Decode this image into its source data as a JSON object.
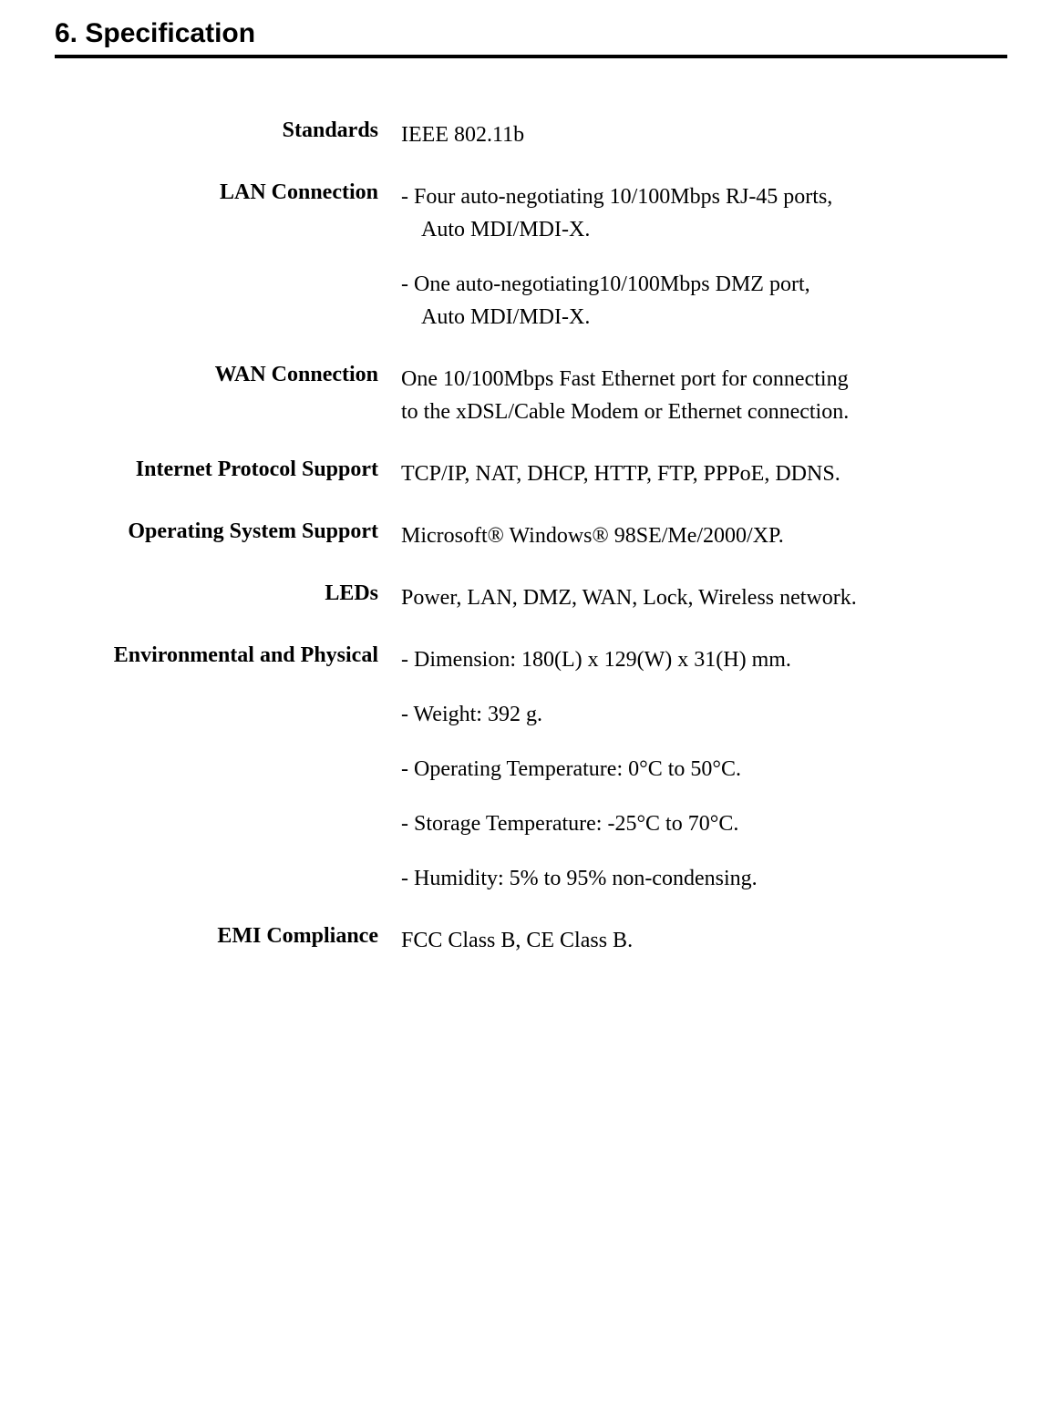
{
  "header": {
    "title": "6.   Specification"
  },
  "specs": {
    "standards": {
      "label": "Standards",
      "value": "IEEE 802.11b"
    },
    "lan_connection": {
      "label": "LAN Connection",
      "item1_line1": "-  Four auto-negotiating 10/100Mbps RJ-45 ports,",
      "item1_line2": "Auto MDI/MDI-X.",
      "item2_line1": "-  One auto-negotiating10/100Mbps DMZ port,",
      "item2_line2": "Auto MDI/MDI-X."
    },
    "wan_connection": {
      "label": "WAN Connection",
      "line1": "One 10/100Mbps Fast Ethernet port for connecting",
      "line2": "to the xDSL/Cable Modem or Ethernet connection."
    },
    "internet_protocol": {
      "label": "Internet Protocol Support",
      "value": "TCP/IP, NAT, DHCP, HTTP, FTP, PPPoE, DDNS."
    },
    "os_support": {
      "label": "Operating System Support",
      "value": "Microsoft® Windows® 98SE/Me/2000/XP."
    },
    "leds": {
      "label": "LEDs",
      "value": "Power, LAN, DMZ, WAN, Lock, Wireless network."
    },
    "environmental": {
      "label": "Environmental and Physical",
      "dimension": "-  Dimension: 180(L) x 129(W) x 31(H) mm.",
      "weight": "-  Weight: 392 g.",
      "op_temp": "-  Operating Temperature: 0°C to 50°C.",
      "storage_temp": "-  Storage Temperature: -25°C to 70°C.",
      "humidity": "-  Humidity: 5% to 95% non-condensing."
    },
    "emi": {
      "label": "EMI Compliance",
      "value": "FCC Class B, CE Class B."
    }
  }
}
